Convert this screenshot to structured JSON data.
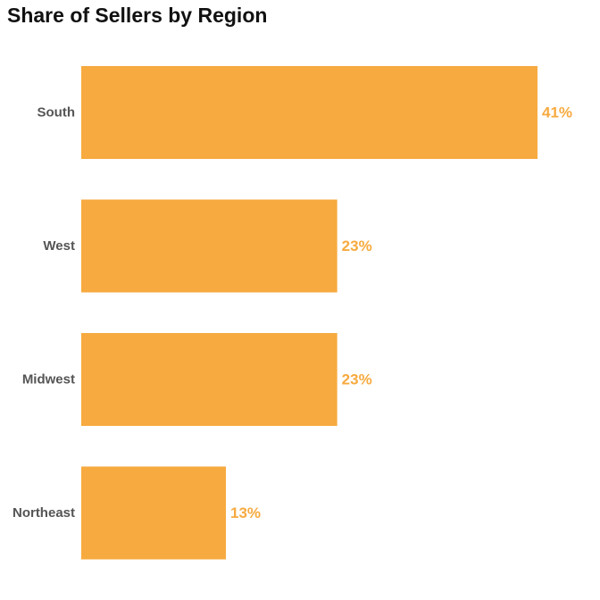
{
  "chart_data": {
    "type": "bar",
    "orientation": "horizontal",
    "title": "Share of Sellers by Region",
    "categories": [
      "South",
      "West",
      "Midwest",
      "Northeast"
    ],
    "values": [
      41,
      23,
      23,
      13
    ],
    "value_labels": [
      "41%",
      "23%",
      "23%",
      "13%"
    ],
    "unit": "%",
    "xlim": [
      0,
      41
    ],
    "grid": false,
    "legend": "none"
  },
  "colors": {
    "bar": "#F7AA3F",
    "value_label": "#F7AA3F",
    "category_label": "#555555",
    "title": "#111111"
  }
}
